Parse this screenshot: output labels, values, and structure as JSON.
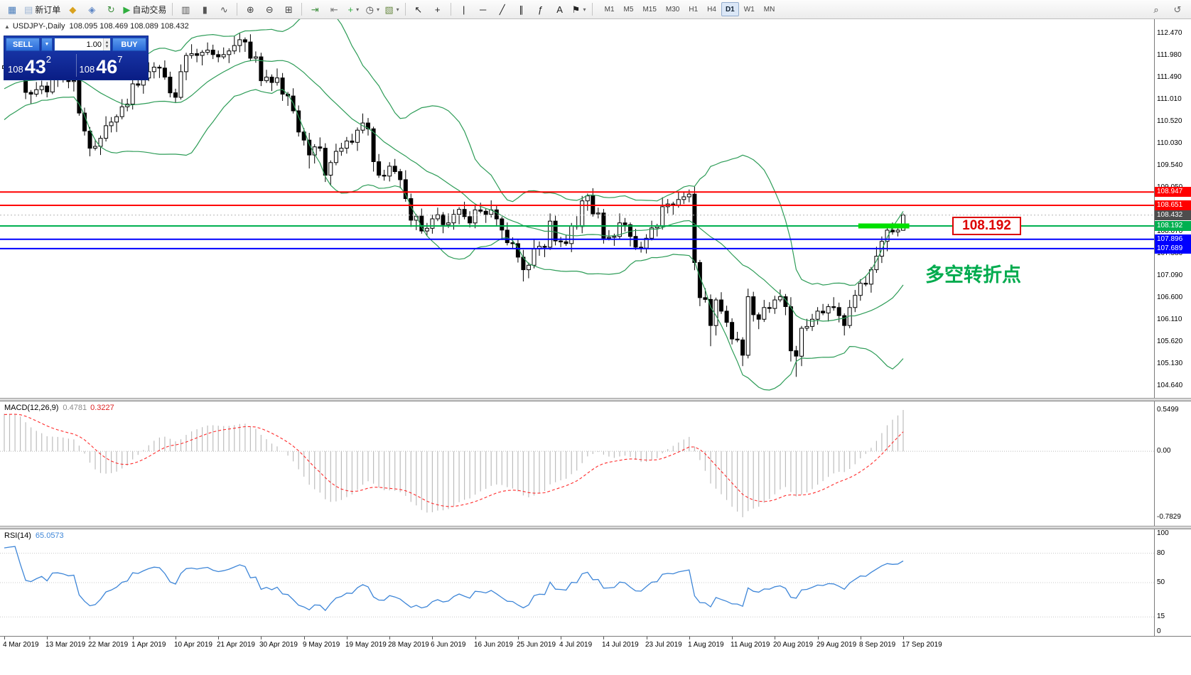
{
  "toolbar": {
    "caret_glyph": "▾",
    "items": [
      {
        "name": "new-chart-button",
        "glyph": "▦",
        "color": "#4a7dbb"
      },
      {
        "name": "new-order-button",
        "glyph": "▤",
        "color": "#9fb6d4",
        "label": "新订单"
      },
      {
        "name": "layouts-icon",
        "glyph": "◆",
        "color": "#d9a21f"
      },
      {
        "name": "profiles-icon",
        "glyph": "◈",
        "color": "#5b84c4"
      },
      {
        "name": "refresh-icon",
        "glyph": "↻",
        "color": "#3f8f3f"
      },
      {
        "name": "autotrading-button",
        "glyph": "▶",
        "color": "#2fae3f",
        "label": "自动交易"
      },
      {
        "type": "sep"
      },
      {
        "name": "chart-bars-button",
        "glyph": "▥",
        "color": "#555555"
      },
      {
        "name": "chart-candles-button",
        "glyph": "▮",
        "color": "#555555"
      },
      {
        "name": "chart-line-button",
        "glyph": "∿",
        "color": "#555555"
      },
      {
        "type": "sep"
      },
      {
        "name": "zoom-in-button",
        "glyph": "⊕",
        "color": "#444444"
      },
      {
        "name": "zoom-out-button",
        "glyph": "⊖",
        "color": "#444444"
      },
      {
        "name": "tile-windows-button",
        "glyph": "⊞",
        "color": "#444444"
      },
      {
        "type": "sep"
      },
      {
        "name": "auto-scroll-button",
        "glyph": "⇥",
        "color": "#3f8f3f"
      },
      {
        "name": "chart-shift-button",
        "glyph": "⇤",
        "color": "#777777"
      },
      {
        "name": "indicators-button",
        "glyph": "+",
        "color": "#2fae3f",
        "caret": true
      },
      {
        "name": "periods-button",
        "glyph": "◷",
        "color": "#444444",
        "caret": true
      },
      {
        "name": "templates-button",
        "glyph": "▧",
        "color": "#6a8a44",
        "caret": true
      },
      {
        "type": "sep"
      },
      {
        "name": "cursor-button",
        "glyph": "↖",
        "color": "#222222"
      },
      {
        "name": "crosshair-button",
        "glyph": "+",
        "color": "#222222"
      },
      {
        "type": "sep"
      },
      {
        "name": "vertical-line-button",
        "glyph": "|",
        "color": "#222222"
      },
      {
        "name": "horizontal-line-button",
        "glyph": "─",
        "color": "#222222"
      },
      {
        "name": "trendline-button",
        "glyph": "╱",
        "color": "#222222"
      },
      {
        "name": "channel-button",
        "glyph": "∥",
        "color": "#222222"
      },
      {
        "name": "fibonacci-button",
        "glyph": "ƒ",
        "color": "#222222"
      },
      {
        "name": "text-button",
        "glyph": "A",
        "color": "#222222"
      },
      {
        "name": "arrows-button",
        "glyph": "⚑",
        "color": "#222222",
        "caret": true
      },
      {
        "type": "sep"
      }
    ],
    "timeframes": [
      {
        "label": "M1"
      },
      {
        "label": "M5"
      },
      {
        "label": "M15"
      },
      {
        "label": "M30"
      },
      {
        "label": "H1"
      },
      {
        "label": "H4"
      },
      {
        "label": "D1",
        "active": true
      },
      {
        "label": "W1"
      },
      {
        "label": "MN"
      }
    ],
    "right_items": [
      {
        "name": "search-icon",
        "glyph": "⌕",
        "color": "#444444"
      },
      {
        "name": "community-icon",
        "glyph": "↺",
        "color": "#666666"
      }
    ]
  },
  "chart": {
    "symbol_line": {
      "collapse_glyph": "▲",
      "symbol": "USDJPY-,Daily",
      "ohlc": "108.095 108.469 108.089 108.432"
    },
    "one_click": {
      "sell_label": "SELL",
      "buy_label": "BUY",
      "volume": "1.00",
      "caret": "▼",
      "spin_up": "▲",
      "spin_down": "▼",
      "bid_prefix": "108",
      "bid_big": "43",
      "bid_sup": "2",
      "ask_prefix": "108",
      "ask_big": "46",
      "ask_sup": "7"
    },
    "annotations": {
      "price_label": "108.192",
      "price_label_color": "#dd0000",
      "turning_point": "多空转折点",
      "turning_point_color": "#00ab4e"
    },
    "hlines": [
      {
        "price": 108.947,
        "color": "#ff0000",
        "width": 2,
        "tag": "108.947"
      },
      {
        "price": 108.651,
        "color": "#ff0000",
        "width": 2,
        "tag": "108.651"
      },
      {
        "price": 108.192,
        "color": "#00b050",
        "width": 2,
        "tag": "108.192"
      },
      {
        "price": 107.896,
        "color": "#0000ff",
        "width": 2,
        "tag": "107.896"
      },
      {
        "price": 107.689,
        "color": "#0000ff",
        "width": 2,
        "tag": "107.689"
      }
    ],
    "current_price": {
      "price": 108.432,
      "tag": "108.432",
      "color": "#4d4d4d"
    },
    "highlight": {
      "price": 108.192,
      "bar_start": 160,
      "bar_end": 169,
      "color": "#00e000",
      "thickness": 7
    },
    "y_axis_labels": [
      "112.470",
      "111.980",
      "111.490",
      "111.010",
      "110.520",
      "110.030",
      "109.540",
      "109.050",
      "108.070",
      "107.580",
      "107.090",
      "106.600",
      "106.110",
      "105.620",
      "105.130",
      "104.640"
    ],
    "x_axis_labels": [
      "4 Mar 2019",
      "13 Mar 2019",
      "22 Mar 2019",
      "1 Apr 2019",
      "10 Apr 2019",
      "21 Apr 2019",
      "30 Apr 2019",
      "9 May 2019",
      "19 May 2019",
      "28 May 2019",
      "6 Jun 2019",
      "16 Jun 2019",
      "25 Jun 2019",
      "4 Jul 2019",
      "14 Jul 2019",
      "23 Jul 2019",
      "1 Aug 2019",
      "11 Aug 2019",
      "20 Aug 2019",
      "29 Aug 2019",
      "8 Sep 2019",
      "17 Sep 2019"
    ]
  },
  "macd_panel": {
    "label": "MACD(12,26,9)",
    "value1": "0.4781",
    "value2": "0.3227",
    "axis_max": "0.5499",
    "axis_zero": "0.00",
    "axis_min": "-0.7829",
    "bar_color": "#bdbdbd",
    "signal_color": "#ff2a2a"
  },
  "rsi_panel": {
    "label": "RSI(14)",
    "value": "65.0573",
    "line_color": "#3e86d8",
    "levels": [
      80,
      50,
      15
    ],
    "axis_labels": [
      {
        "v": 100,
        "t": "100"
      },
      {
        "v": 80,
        "t": "80"
      },
      {
        "v": 50,
        "t": "50"
      },
      {
        "v": 15,
        "t": "15"
      },
      {
        "v": 0,
        "t": "0"
      }
    ]
  },
  "chart_data": {
    "type": "candlestick",
    "symbol": "USDJPY",
    "timeframe": "Daily",
    "title": "USDJPY-,Daily",
    "ohlc_current": {
      "open": 108.095,
      "high": 108.469,
      "low": 108.089,
      "close": 108.432
    },
    "first_open": 111.69,
    "warmup_closes": [
      109.6,
      109.75,
      109.7,
      109.9,
      110.05,
      110.0,
      110.15,
      110.3,
      110.25,
      110.45,
      110.6,
      110.55,
      110.7,
      110.85,
      110.8,
      110.95,
      111.05,
      111.0,
      111.15,
      111.25,
      111.2,
      111.3,
      111.4,
      111.35,
      111.45,
      111.55,
      111.5,
      111.6,
      111.68,
      111.72
    ],
    "closes": [
      111.75,
      111.82,
      111.88,
      111.58,
      111.16,
      111.12,
      111.22,
      111.3,
      111.17,
      111.47,
      111.48,
      111.45,
      111.4,
      111.42,
      110.7,
      110.3,
      109.92,
      109.96,
      110.14,
      110.42,
      110.5,
      110.62,
      110.84,
      110.9,
      111.35,
      111.32,
      111.48,
      111.62,
      111.72,
      111.7,
      111.5,
      111.15,
      111.05,
      111.62,
      111.98,
      112.02,
      111.98,
      112.05,
      112.1,
      112.0,
      111.95,
      112.0,
      112.08,
      112.2,
      112.33,
      112.28,
      111.92,
      111.95,
      111.42,
      111.5,
      111.38,
      111.48,
      111.12,
      111.08,
      110.75,
      110.28,
      110.1,
      109.77,
      109.95,
      109.92,
      109.32,
      109.6,
      109.85,
      109.92,
      110.08,
      110.05,
      110.32,
      110.48,
      110.35,
      109.62,
      109.32,
      109.3,
      109.52,
      109.4,
      109.22,
      108.8,
      108.32,
      108.41,
      108.08,
      108.14,
      108.35,
      108.44,
      108.22,
      108.26,
      108.45,
      108.56,
      108.4,
      108.26,
      108.55,
      108.52,
      108.45,
      108.55,
      108.35,
      108.1,
      107.82,
      107.8,
      107.5,
      107.22,
      107.32,
      107.68,
      107.74,
      107.72,
      108.3,
      107.86,
      107.84,
      107.8,
      108.2,
      108.18,
      108.75,
      108.86,
      108.46,
      108.48,
      107.92,
      107.94,
      107.96,
      108.26,
      108.22,
      107.96,
      107.72,
      107.7,
      107.92,
      108.15,
      108.18,
      108.62,
      108.68,
      108.66,
      108.78,
      108.84,
      108.9,
      107.38,
      106.6,
      106.56,
      105.98,
      106.55,
      106.3,
      106.05,
      105.68,
      105.66,
      105.32,
      106.62,
      106.22,
      106.12,
      106.38,
      106.36,
      106.55,
      106.62,
      106.4,
      105.42,
      105.3,
      105.92,
      105.96,
      106.12,
      106.3,
      106.26,
      106.4,
      106.38,
      106.2,
      105.98,
      106.38,
      106.65,
      106.92,
      106.9,
      107.22,
      107.52,
      107.85,
      108.1,
      108.06,
      108.1,
      108.432
    ],
    "wick_up_pattern": [
      0.09,
      0.16,
      0.06,
      0.21,
      0.11,
      0.05,
      0.17,
      0.12
    ],
    "wick_dn_pattern": [
      0.12,
      0.05,
      0.19,
      0.07,
      0.15,
      0.22,
      0.06,
      0.1
    ],
    "wick_overrides": {
      "16": {
        "l": 109.74
      },
      "44": {
        "h": 112.47
      },
      "57": {
        "l": 109.47
      },
      "97": {
        "l": 106.96
      },
      "128": {
        "h": 109.0
      },
      "129": {
        "l": 107.21
      },
      "132": {
        "l": 105.52
      },
      "138": {
        "l": 105.08
      },
      "139": {
        "h": 106.8
      },
      "147": {
        "l": 105.18
      },
      "148": {
        "l": 104.84
      },
      "168": {
        "o": 108.095,
        "h": 108.469,
        "l": 108.089,
        "c": 108.432
      }
    },
    "bollinger": {
      "period": 20,
      "deviation": 2,
      "color": "#2d9c57"
    },
    "macd": {
      "fast": 12,
      "slow": 26,
      "signal": 9
    },
    "rsi": {
      "period": 14
    }
  }
}
